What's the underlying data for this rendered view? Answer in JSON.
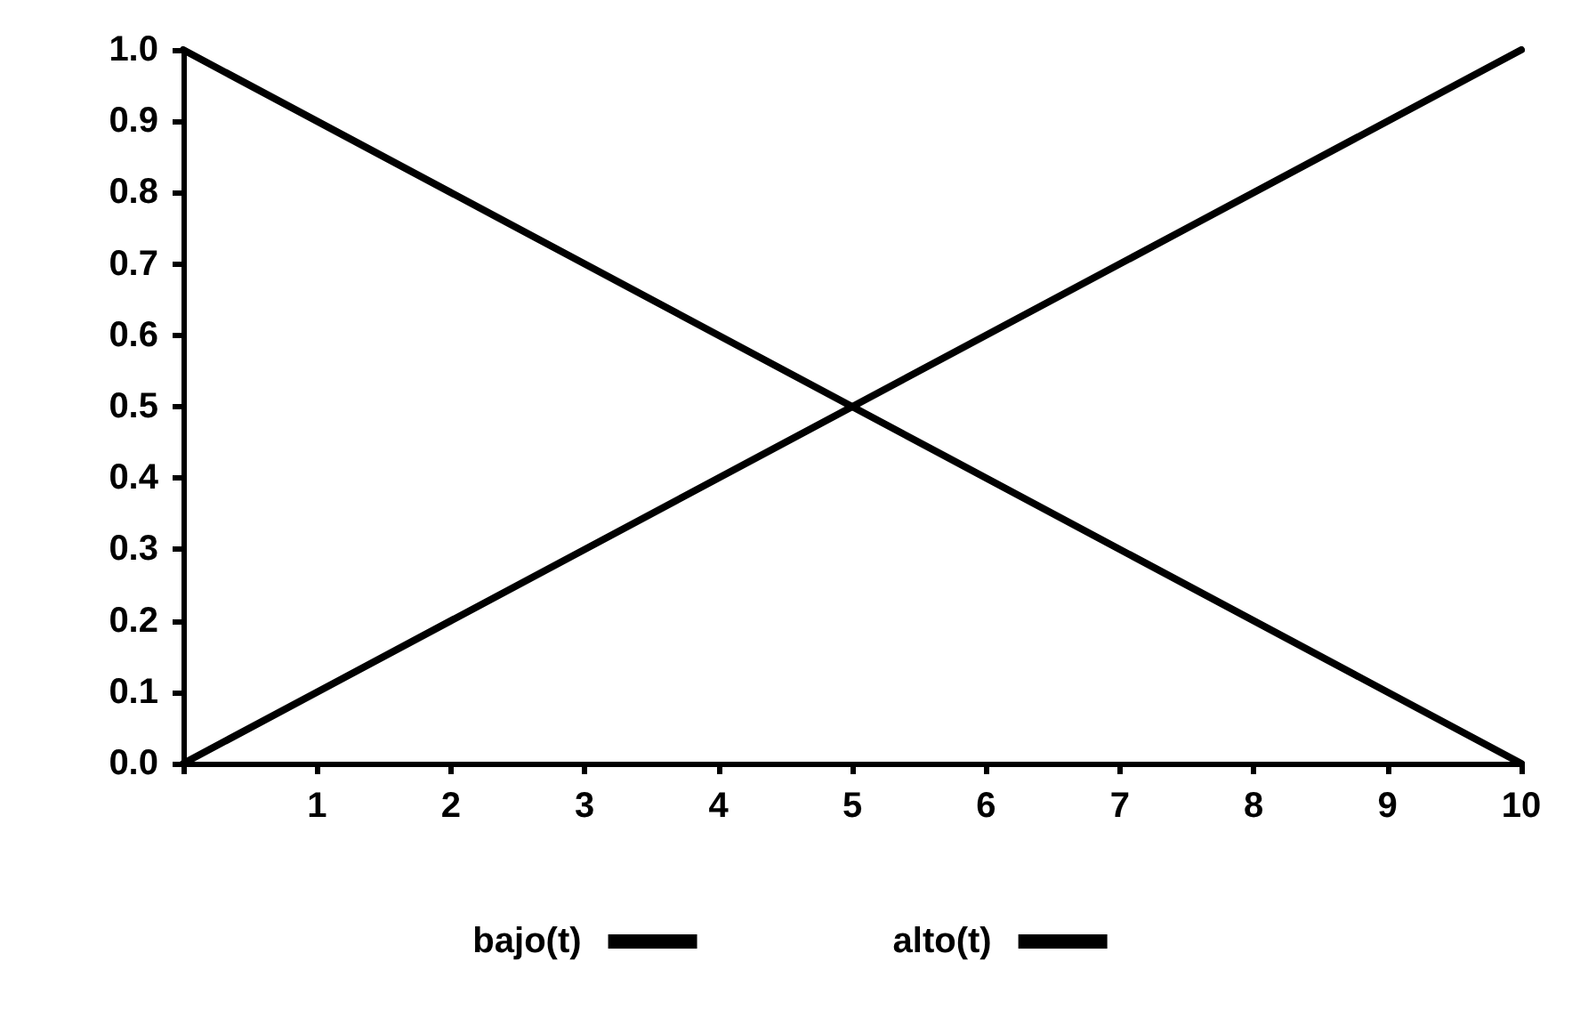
{
  "chart_data": {
    "type": "line",
    "x": [
      0,
      10
    ],
    "series": [
      {
        "name": "bajo(t)",
        "color": "#000000",
        "values": [
          1,
          0
        ]
      },
      {
        "name": "alto(t)",
        "color": "#000000",
        "values": [
          0,
          1
        ]
      }
    ],
    "xlim": [
      0,
      10
    ],
    "xticks": [
      {
        "value": 0,
        "label": null
      },
      1,
      2,
      3,
      4,
      5,
      6,
      7,
      8,
      9,
      10
    ],
    "ylim": [
      0,
      1
    ],
    "yticks": [
      {
        "value": 0,
        "label": "0.0"
      },
      0.1,
      0.2,
      0.3,
      0.4,
      0.5,
      0.6,
      0.7,
      0.8,
      0.9,
      {
        "value": 1,
        "label": "1.0"
      }
    ],
    "grid": false,
    "legend": "bottom",
    "marker": "none",
    "line_style": "solid"
  }
}
